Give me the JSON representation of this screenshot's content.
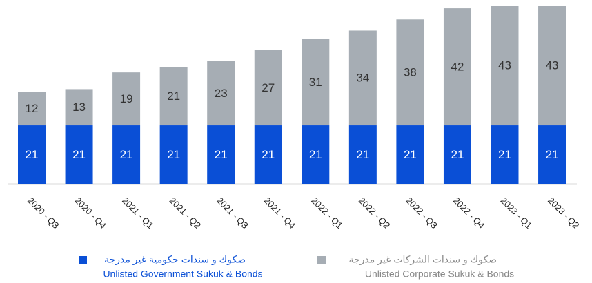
{
  "chart_data": {
    "type": "stacked_bar",
    "categories": [
      "2020 - Q3",
      "2020 - Q4",
      "2021 - Q1",
      "2021 - Q2",
      "2021 - Q3",
      "2021 - Q4",
      "2022 - Q1",
      "2022 - Q2",
      "2022 - Q3",
      "2022 - Q4",
      "2023 - Q1",
      "2023 - Q2"
    ],
    "series": [
      {
        "name": "Unlisted Government Sukuk & Bonds",
        "name_ar": "صكوك و سندات حكومية غير مدرجة",
        "color": "#0a4fd6",
        "label_color": "#ffffff",
        "values": [
          21,
          21,
          21,
          21,
          21,
          21,
          21,
          21,
          21,
          21,
          21,
          21
        ]
      },
      {
        "name": "Unlisted Corporate Sukuk & Bonds",
        "name_ar": "صكوك و سندات الشركات غير مدرجة",
        "color": "#a6adb4",
        "label_color": "#333333",
        "values": [
          12,
          13,
          19,
          21,
          23,
          27,
          31,
          34,
          38,
          42,
          43,
          43
        ]
      }
    ],
    "ylim": [
      0,
      65
    ]
  }
}
